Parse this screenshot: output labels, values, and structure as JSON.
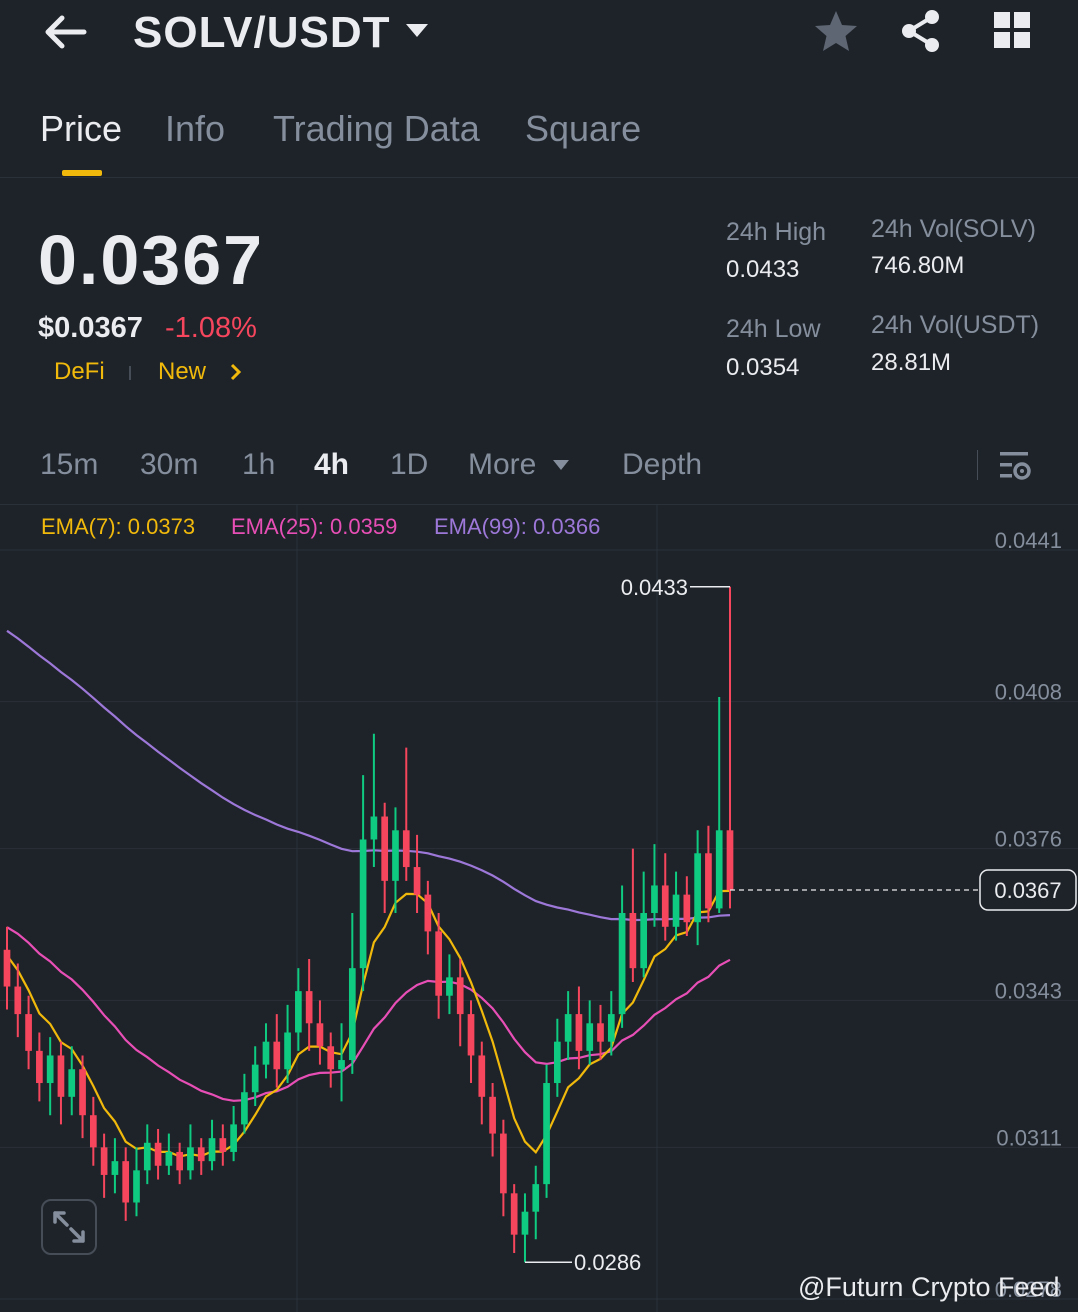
{
  "header": {
    "pair": "SOLV/USDT"
  },
  "tabs": [
    "Price",
    "Info",
    "Trading Data",
    "Square"
  ],
  "price": {
    "last": "0.0367",
    "usd": "$0.0367",
    "change": "-1.08%",
    "tags": [
      "DeFi",
      "New"
    ]
  },
  "stats": {
    "high_label": "24h High",
    "high_value": "0.0433",
    "low_label": "24h Low",
    "low_value": "0.0354",
    "vol_base_label": "24h Vol(SOLV)",
    "vol_base_value": "746.80M",
    "vol_quote_label": "24h Vol(USDT)",
    "vol_quote_value": "28.81M"
  },
  "intervals": [
    "15m",
    "30m",
    "1h",
    "4h",
    "1D",
    "More",
    "Depth"
  ],
  "active_interval": "4h",
  "ema": {
    "ema7": "EMA(7): 0.0373",
    "ema25": "EMA(25): 0.0359",
    "ema99": "EMA(99): 0.0366"
  },
  "watermark": "@Futurn Crypto Feed",
  "colors": {
    "background": "#1e2329",
    "up": "#0ecb81",
    "down": "#f6465d",
    "accent": "#f0b90b",
    "ema7": "#f0b90b",
    "ema25": "#e84fb6",
    "ema99": "#9d78d9"
  },
  "chart_data": {
    "type": "candlestick",
    "y_ticks": [
      "0.0441",
      "0.0408",
      "0.0376",
      "0.0343",
      "0.0311",
      "0.0278"
    ],
    "ylim": [
      0.0278,
      0.0441
    ],
    "current_price_label": "0.0367",
    "current_price": 0.0367,
    "high_label": "0.0433",
    "high": 0.0433,
    "low_label": "0.0286",
    "low": 0.0286,
    "candles": [
      [
        0.0354,
        0.0346,
        0.0359,
        0.0341
      ],
      [
        0.0346,
        0.034,
        0.0351,
        0.0335
      ],
      [
        0.034,
        0.0332,
        0.0344,
        0.0328
      ],
      [
        0.0332,
        0.0325,
        0.0336,
        0.0321
      ],
      [
        0.0325,
        0.0331,
        0.0335,
        0.0318
      ],
      [
        0.0331,
        0.0322,
        0.0334,
        0.0316
      ],
      [
        0.0322,
        0.0328,
        0.0333,
        0.0318
      ],
      [
        0.0328,
        0.0318,
        0.0331,
        0.0313
      ],
      [
        0.0318,
        0.0311,
        0.0322,
        0.0307
      ],
      [
        0.0311,
        0.0305,
        0.0314,
        0.03
      ],
      [
        0.0305,
        0.0308,
        0.0313,
        0.0301
      ],
      [
        0.0308,
        0.0299,
        0.0311,
        0.0295
      ],
      [
        0.0299,
        0.0306,
        0.0311,
        0.0296
      ],
      [
        0.0306,
        0.0312,
        0.0316,
        0.0303
      ],
      [
        0.0312,
        0.0307,
        0.0315,
        0.0304
      ],
      [
        0.0307,
        0.031,
        0.0314,
        0.0305
      ],
      [
        0.031,
        0.0306,
        0.0312,
        0.0303
      ],
      [
        0.0306,
        0.0311,
        0.0316,
        0.0304
      ],
      [
        0.0311,
        0.0308,
        0.0313,
        0.0305
      ],
      [
        0.0308,
        0.0313,
        0.0317,
        0.0306
      ],
      [
        0.0313,
        0.031,
        0.0316,
        0.0307
      ],
      [
        0.031,
        0.0316,
        0.032,
        0.0308
      ],
      [
        0.0316,
        0.0323,
        0.0327,
        0.0314
      ],
      [
        0.0323,
        0.0329,
        0.0333,
        0.032
      ],
      [
        0.0329,
        0.0334,
        0.0338,
        0.0326
      ],
      [
        0.0334,
        0.0328,
        0.034,
        0.0324
      ],
      [
        0.0328,
        0.0336,
        0.0342,
        0.0325
      ],
      [
        0.0336,
        0.0345,
        0.035,
        0.0332
      ],
      [
        0.0345,
        0.0338,
        0.0352,
        0.0332
      ],
      [
        0.0338,
        0.0333,
        0.0343,
        0.0329
      ],
      [
        0.0333,
        0.0328,
        0.0336,
        0.0324
      ],
      [
        0.0328,
        0.033,
        0.0338,
        0.0321
      ],
      [
        0.033,
        0.035,
        0.0362,
        0.0327
      ],
      [
        0.035,
        0.0378,
        0.0392,
        0.0345
      ],
      [
        0.0378,
        0.0383,
        0.0401,
        0.0372
      ],
      [
        0.0383,
        0.0369,
        0.0386,
        0.0362
      ],
      [
        0.0369,
        0.038,
        0.0385,
        0.0362
      ],
      [
        0.038,
        0.0372,
        0.0398,
        0.0369
      ],
      [
        0.0372,
        0.0366,
        0.0379,
        0.0362
      ],
      [
        0.0366,
        0.0358,
        0.0369,
        0.0353
      ],
      [
        0.0358,
        0.0344,
        0.0362,
        0.0339
      ],
      [
        0.0344,
        0.0348,
        0.0353,
        0.034
      ],
      [
        0.0348,
        0.034,
        0.0352,
        0.0333
      ],
      [
        0.034,
        0.0331,
        0.0343,
        0.0325
      ],
      [
        0.0331,
        0.0322,
        0.0334,
        0.0316
      ],
      [
        0.0322,
        0.0314,
        0.0325,
        0.0309
      ],
      [
        0.0314,
        0.0301,
        0.0317,
        0.0296
      ],
      [
        0.0301,
        0.0292,
        0.0303,
        0.0288
      ],
      [
        0.0292,
        0.0297,
        0.0301,
        0.0286
      ],
      [
        0.0297,
        0.0303,
        0.0307,
        0.0291
      ],
      [
        0.0303,
        0.0325,
        0.0329,
        0.03
      ],
      [
        0.0325,
        0.0334,
        0.0339,
        0.0322
      ],
      [
        0.0334,
        0.034,
        0.0345,
        0.033
      ],
      [
        0.034,
        0.0332,
        0.0346,
        0.0328
      ],
      [
        0.0332,
        0.0338,
        0.0343,
        0.0329
      ],
      [
        0.0338,
        0.0334,
        0.0342,
        0.033
      ],
      [
        0.0334,
        0.034,
        0.0345,
        0.0331
      ],
      [
        0.034,
        0.0362,
        0.0368,
        0.0337
      ],
      [
        0.0362,
        0.035,
        0.0376,
        0.0347
      ],
      [
        0.035,
        0.0362,
        0.0371,
        0.0348
      ],
      [
        0.0362,
        0.0368,
        0.0377,
        0.0359
      ],
      [
        0.0368,
        0.0359,
        0.0375,
        0.0356
      ],
      [
        0.0359,
        0.0366,
        0.0371,
        0.0356
      ],
      [
        0.0366,
        0.036,
        0.037,
        0.0357
      ],
      [
        0.036,
        0.0375,
        0.038,
        0.0355
      ],
      [
        0.0375,
        0.0363,
        0.0381,
        0.036
      ],
      [
        0.0363,
        0.038,
        0.0409,
        0.0362
      ],
      [
        0.038,
        0.0367,
        0.0433,
        0.0363
      ]
    ]
  }
}
